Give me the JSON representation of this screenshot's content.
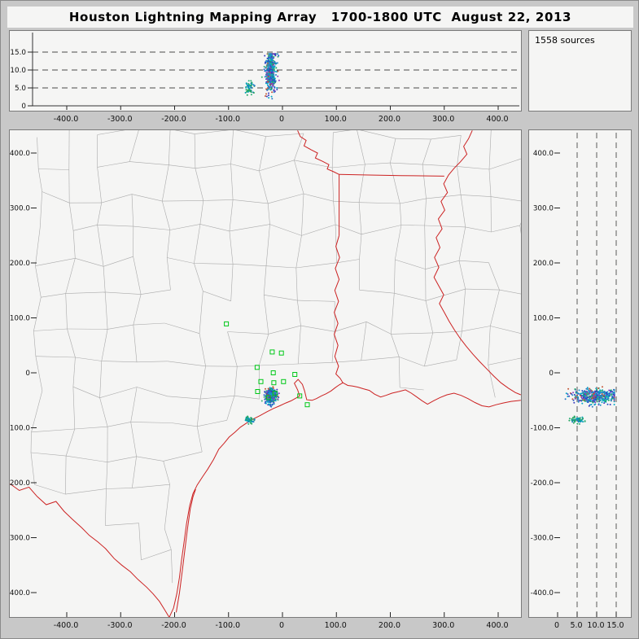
{
  "title": "Houston Lightning Mapping Array   1700-1800 UTC  August 22, 2013",
  "source_panel": {
    "label": "1558 sources"
  },
  "colors": {
    "frame": "#c8c8c8",
    "panel_bg": "#f5f5f4",
    "panel_border": "#7a7a7a",
    "county_line": "#aaaaaa",
    "state_line": "#cc2222",
    "grid_dash": "#4a4a4a",
    "tick_text": "#111111",
    "station": "#00c818"
  },
  "axes": {
    "east_tick_labels": [
      "-400.0",
      "-300.0",
      "-200.0",
      "-100.0",
      "0",
      "100.0",
      "200.0",
      "300.0",
      "400.0"
    ],
    "north_tick_labels": [
      "400.0",
      "300.0",
      "200.0",
      "100.0",
      "0",
      "-100.0",
      "-200.0",
      "-300.0",
      "-400.0"
    ],
    "alt_tick_labels_top": [
      "15.0",
      "10.0",
      "5.0",
      "0"
    ],
    "alt_tick_labels_right": [
      "0",
      "5.0",
      "10.0",
      "15.0"
    ],
    "alt_gridlines_km": [
      5,
      10,
      15
    ]
  },
  "chart_data": {
    "type": "scatter",
    "title": "Houston Lightning Mapping Array",
    "time_window": "1700-1800 UTC",
    "date": "August 22, 2013",
    "source_count": 1558,
    "panels": [
      {
        "id": "altitude-vs-east",
        "x": "east_km",
        "y": "altitude_km",
        "x_range_km": [
          -505,
          442
        ],
        "y_range_km": [
          0,
          21
        ],
        "gridlines_km": [
          5,
          10,
          15
        ]
      },
      {
        "id": "plan-view-map",
        "x": "east_km",
        "y": "north_km",
        "x_range_km": [
          -505,
          442
        ],
        "y_range_km": [
          -444,
          441
        ],
        "overlay": "Texas-Louisiana county and state boundaries with Gulf coastline"
      },
      {
        "id": "altitude-vs-north",
        "x": "altitude_km",
        "y": "north_km",
        "x_range_km": [
          0,
          18.7
        ],
        "y_range_km": [
          -444,
          441
        ],
        "gridlines_km": [
          5,
          10,
          15
        ]
      }
    ],
    "lightning_clusters": [
      {
        "name": "primary-cell",
        "east_km": -22,
        "north_km": -42,
        "east_spread_km": 5,
        "north_spread_km": 7,
        "alt_km_range": [
          2,
          14.5
        ],
        "alt_mode_km": 9.5,
        "approx_point_count": 430,
        "palette": [
          "#00a8c8",
          "#00a8c8",
          "#0f9cc0",
          "#1f8cc8",
          "#2a7ac8",
          "#2255c8",
          "#3b3bbf",
          "#12a864",
          "#35b273",
          "#8a3fc0",
          "#c25537"
        ]
      },
      {
        "name": "secondary-cell",
        "east_km": -60,
        "north_km": -86,
        "east_spread_km": 4,
        "north_spread_km": 3,
        "alt_km_range": [
          3,
          7
        ],
        "alt_mode_km": 5,
        "approx_point_count": 60,
        "palette": [
          "#1ea45e",
          "#2fae77",
          "#1f7ac8",
          "#00a0b4"
        ]
      }
    ],
    "stations_east_north_km": [
      [
        -104,
        89
      ],
      [
        -19,
        38
      ],
      [
        -2,
        36
      ],
      [
        -47,
        10
      ],
      [
        -17,
        0
      ],
      [
        23,
        -3
      ],
      [
        -40,
        -16
      ],
      [
        -16,
        -18
      ],
      [
        2,
        -16
      ],
      [
        -46,
        -34
      ],
      [
        -14,
        -37
      ],
      [
        32,
        -42
      ],
      [
        -26,
        -45
      ],
      [
        46,
        -58
      ]
    ]
  }
}
